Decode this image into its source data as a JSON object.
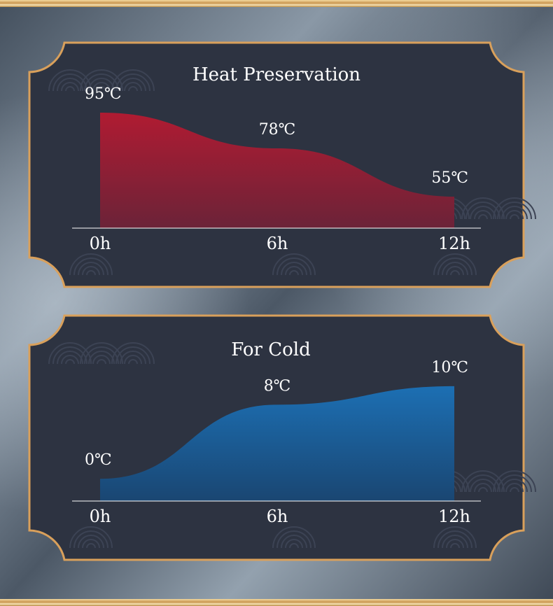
{
  "theme": {
    "panel_fill": "#2d3341",
    "border_gold": "#d9a05b",
    "heat_color_top": "#b01b32",
    "heat_color_bottom": "#6b2338",
    "cold_color_top": "#1c6fb3",
    "cold_color_bottom": "#1a4672",
    "text_color": "#ffffff",
    "decoration": "cloud-wave-pattern"
  },
  "chart_data": [
    {
      "type": "area",
      "title": "Heat Preservation",
      "x": [
        "0h",
        "6h",
        "12h"
      ],
      "x_values": [
        0,
        6,
        12
      ],
      "values": [
        95,
        78,
        55
      ],
      "point_labels": [
        "95℃",
        "78℃",
        "55℃"
      ],
      "ylim": [
        40,
        100
      ],
      "grid": false,
      "legend": "none"
    },
    {
      "type": "area",
      "title": "For Cold",
      "x": [
        "0h",
        "6h",
        "12h"
      ],
      "x_values": [
        0,
        6,
        12
      ],
      "values": [
        0,
        8,
        10
      ],
      "point_labels": [
        "0℃",
        "8℃",
        "10℃"
      ],
      "ylim": [
        -2.4,
        11.2
      ],
      "grid": false,
      "legend": "none"
    }
  ]
}
